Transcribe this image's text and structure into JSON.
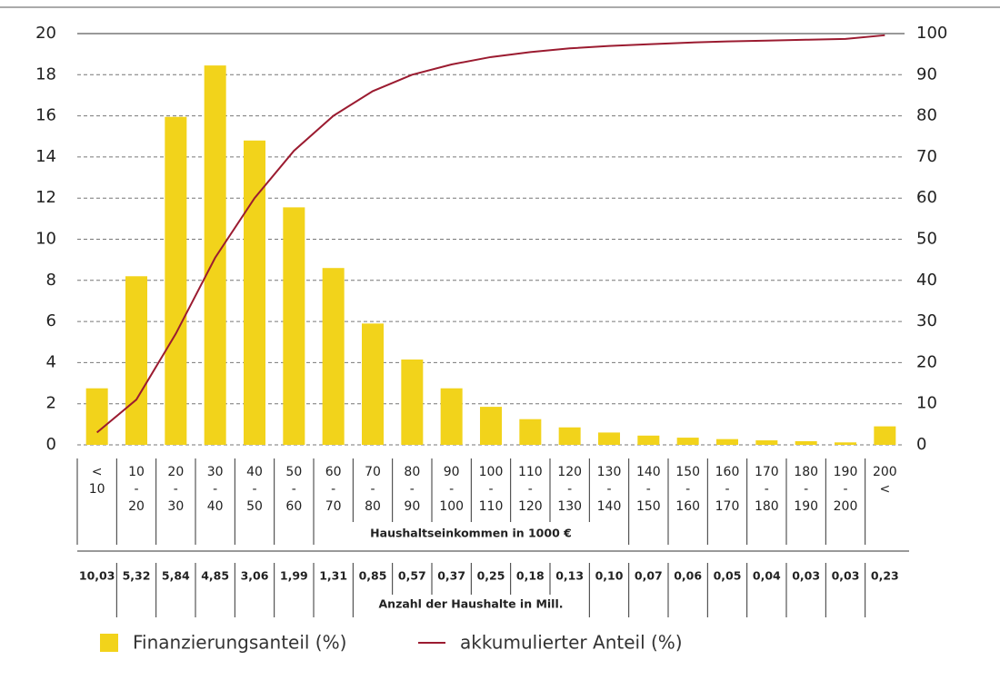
{
  "chart_data": {
    "type": "bar",
    "categories": [
      [
        "<",
        "10"
      ],
      [
        "10",
        "-",
        "20"
      ],
      [
        "20",
        "-",
        "30"
      ],
      [
        "30",
        "-",
        "40"
      ],
      [
        "40",
        "-",
        "50"
      ],
      [
        "50",
        "-",
        "60"
      ],
      [
        "60",
        "-",
        "70"
      ],
      [
        "70",
        "-",
        "80"
      ],
      [
        "80",
        "-",
        "90"
      ],
      [
        "90",
        "-",
        "100"
      ],
      [
        "100",
        "-",
        "110"
      ],
      [
        "110",
        "-",
        "120"
      ],
      [
        "120",
        "-",
        "130"
      ],
      [
        "130",
        "-",
        "140"
      ],
      [
        "140",
        "-",
        "150"
      ],
      [
        "150",
        "-",
        "160"
      ],
      [
        "160",
        "-",
        "170"
      ],
      [
        "170",
        "-",
        "180"
      ],
      [
        "180",
        "-",
        "190"
      ],
      [
        "190",
        "-",
        "200"
      ],
      [
        "200",
        "<"
      ]
    ],
    "series": [
      {
        "name": "Finanzierungsanteil (%)",
        "color": "#f2d31b",
        "type": "bar",
        "values": [
          2.75,
          8.2,
          15.95,
          18.45,
          14.8,
          11.55,
          8.6,
          5.9,
          4.15,
          2.75,
          1.85,
          1.25,
          0.85,
          0.6,
          0.45,
          0.35,
          0.28,
          0.22,
          0.18,
          0.12,
          0.9
        ]
      },
      {
        "name": "akkumulierter Anteil (%)",
        "color": "#9b1b30",
        "type": "line",
        "axis": "y2",
        "values": [
          3,
          11,
          27,
          45.5,
          60,
          71.5,
          80,
          86,
          90,
          92.5,
          94.3,
          95.5,
          96.4,
          97,
          97.4,
          97.8,
          98.1,
          98.3,
          98.5,
          98.7,
          99.6
        ]
      }
    ],
    "x_label": "Haushaltseinkommen in 1000 €",
    "households_label": "Anzahl der Haushalte in Mill.",
    "households": [
      "10,03",
      "5,32",
      "5,84",
      "4,85",
      "3,06",
      "1,99",
      "1,31",
      "0,85",
      "0,57",
      "0,37",
      "0,25",
      "0,18",
      "0,13",
      "0,10",
      "0,07",
      "0,06",
      "0,05",
      "0,04",
      "0,03",
      "0,03",
      "0,23"
    ],
    "ylim": [
      0,
      20
    ],
    "yticks": [
      0,
      2,
      4,
      6,
      8,
      10,
      12,
      14,
      16,
      18,
      20
    ],
    "y2lim": [
      0,
      100
    ],
    "y2ticks": [
      0,
      10,
      20,
      30,
      40,
      50,
      60,
      70,
      80,
      90,
      100
    ],
    "grid": true
  }
}
